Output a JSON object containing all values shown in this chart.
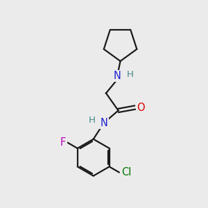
{
  "background_color": "#ebebeb",
  "bond_color": "#1a1a1a",
  "N_color": "#2020cc",
  "O_color": "#dd0000",
  "F_color": "#bb00bb",
  "Cl_color": "#007700",
  "H_color": "#448888",
  "font_size": 10.5,
  "lw": 1.6,
  "figsize": [
    3.0,
    3.0
  ],
  "dpi": 100,
  "xlim": [
    0,
    10
  ],
  "ylim": [
    0,
    10
  ]
}
